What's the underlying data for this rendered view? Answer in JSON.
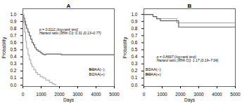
{
  "chart_data": [
    {
      "type": "step",
      "title": "A",
      "xlabel": "Days",
      "ylabel": "Probability",
      "xlim": [
        0,
        5000
      ],
      "ylim": [
        -0.02,
        1.08
      ],
      "xticks": [
        0,
        1000,
        2000,
        3000,
        4000,
        5000
      ],
      "yticks": [
        {
          "value": 0.0,
          "label": "0.0"
        },
        0.1,
        0.2,
        0.3,
        0.4,
        0.5,
        0.6,
        0.7,
        0.8,
        0.9,
        {
          "value": 1.0,
          "label": "1.0"
        }
      ],
      "series": [
        {
          "name": "BCAA(−)",
          "color": "#606060",
          "x": [
            0,
            50,
            100,
            150,
            200,
            280,
            350,
            430,
            500,
            580,
            650,
            730,
            830,
            950,
            1050,
            1150,
            1250,
            1350,
            1500,
            1700,
            2000,
            2100,
            5000
          ],
          "values": [
            1.0,
            0.95,
            0.9,
            0.85,
            0.8,
            0.75,
            0.7,
            0.65,
            0.6,
            0.57,
            0.53,
            0.5,
            0.48,
            0.46,
            0.44,
            0.43,
            0.44,
            0.44,
            0.44,
            0.44,
            0.44,
            0.43,
            0.43
          ]
        },
        {
          "name": "BCAA(+)",
          "color": "#b0b0b0",
          "x": [
            0,
            50,
            100,
            150,
            200,
            280,
            350,
            430,
            500,
            600,
            700,
            800,
            950,
            1100,
            1250,
            1450,
            1600,
            1700,
            1800
          ],
          "values": [
            1.0,
            0.88,
            0.75,
            0.62,
            0.52,
            0.43,
            0.36,
            0.3,
            0.26,
            0.22,
            0.18,
            0.15,
            0.12,
            0.1,
            0.07,
            0.04,
            0.02,
            0.01,
            0.0
          ]
        }
      ],
      "annotations": [
        {
          "x": 900,
          "y": 0.8,
          "text": [
            "p = 0.0111 (log-rank test)",
            "Hazard ratio (95% CI): 0.31 (0.13–0.77)"
          ]
        }
      ],
      "legend": "lower right"
    },
    {
      "type": "step",
      "title": "B",
      "xlabel": "Days",
      "ylabel": "Probability",
      "xlim": [
        0,
        5000
      ],
      "ylim": [
        -0.02,
        1.08
      ],
      "xticks": [
        0,
        1000,
        2000,
        3000,
        4000,
        5000
      ],
      "yticks": [
        {
          "value": 0.0,
          "label": "0.0"
        },
        0.1,
        0.2,
        0.3,
        0.4,
        0.5,
        0.6,
        0.7,
        0.8,
        0.9,
        {
          "value": 1.0,
          "label": "1.0"
        }
      ],
      "series": [
        {
          "name": "BCAA(−)",
          "color": "#b0b0b0",
          "x": [
            0,
            250,
            500,
            700,
            900,
            1000,
            1200,
            1500,
            1800,
            2000,
            4300,
            5000
          ],
          "values": [
            1.0,
            1.0,
            0.97,
            0.94,
            0.94,
            0.94,
            0.94,
            0.94,
            0.88,
            0.88,
            0.88,
            0.88
          ]
        },
        {
          "name": "BCAA(+)",
          "color": "#606060",
          "x": [
            0,
            300,
            500,
            700,
            900,
            1100,
            1400,
            1700,
            1900,
            2100,
            4300,
            5000
          ],
          "values": [
            1.0,
            1.0,
            0.97,
            0.94,
            0.91,
            0.91,
            0.91,
            0.91,
            0.82,
            0.82,
            0.82,
            0.82
          ]
        }
      ],
      "annotations": [
        {
          "x": 700,
          "y": 0.42,
          "text": [
            "p = 0.8667 (log-rank test)",
            "Hazard ratio (95% CI): 1.17 (0.19–7.04)"
          ]
        }
      ],
      "legend": "lower left"
    }
  ]
}
